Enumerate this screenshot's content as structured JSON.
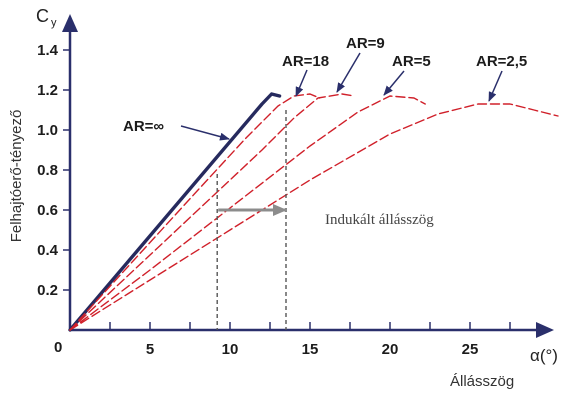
{
  "chart_data": {
    "type": "line",
    "ylabel": "Felhajtóerő-tényező",
    "ylabel_symbol": "C",
    "ylabel_sub": "y",
    "xlabel": "Állásszög",
    "xlabel_symbol": "α(°)",
    "origin_label": "0",
    "xlim": [
      0,
      30
    ],
    "ylim": [
      0,
      1.6
    ],
    "x_ticks": [
      0,
      2.5,
      5,
      7.5,
      10,
      12.5,
      15,
      17.5,
      20,
      22.5,
      25,
      27.5
    ],
    "x_tick_labels": [
      "5",
      "10",
      "15",
      "20",
      "25"
    ],
    "y_tick_labels": [
      "0.2",
      "0.4",
      "0.6",
      "0.8",
      "1.0",
      "1.2",
      "1.4"
    ],
    "series": [
      {
        "name": "AR=∞",
        "color": "#262a5e",
        "style": "solid",
        "x": [
          0,
          12,
          12.6,
          13.1
        ],
        "y": [
          0,
          1.13,
          1.18,
          1.17
        ]
      },
      {
        "name": "AR=18",
        "color": "#d0202a",
        "style": "dashed",
        "x": [
          0,
          4,
          8,
          11,
          13,
          14,
          15,
          15.6
        ],
        "y": [
          0,
          0.35,
          0.7,
          0.96,
          1.12,
          1.17,
          1.18,
          1.16
        ]
      },
      {
        "name": "AR=9",
        "color": "#d0202a",
        "style": "dashed",
        "x": [
          0,
          4,
          8,
          12,
          14,
          15.5,
          17,
          17.8
        ],
        "y": [
          0,
          0.3,
          0.6,
          0.9,
          1.06,
          1.16,
          1.18,
          1.17
        ]
      },
      {
        "name": "AR=5",
        "color": "#d0202a",
        "style": "dashed",
        "x": [
          0,
          5,
          10,
          15,
          18,
          20,
          21.5,
          22.2
        ],
        "y": [
          0,
          0.3,
          0.61,
          0.92,
          1.09,
          1.17,
          1.16,
          1.13
        ]
      },
      {
        "name": "AR=2,5",
        "color": "#d0202a",
        "style": "dashed",
        "x": [
          0,
          5,
          10,
          15,
          20,
          23,
          25.5,
          27.5,
          29,
          30.5
        ],
        "y": [
          0,
          0.25,
          0.5,
          0.75,
          0.98,
          1.08,
          1.13,
          1.13,
          1.1,
          1.07
        ]
      }
    ],
    "annotation": {
      "text": "Indukált állásszög",
      "from_x": 9.2,
      "to_x": 13.5,
      "at_y": 0.6,
      "guide_line_color": "#555555",
      "arrow_color": "#8c8c8c"
    },
    "label_arrow_color": "#2a2f6b",
    "grid": false
  }
}
